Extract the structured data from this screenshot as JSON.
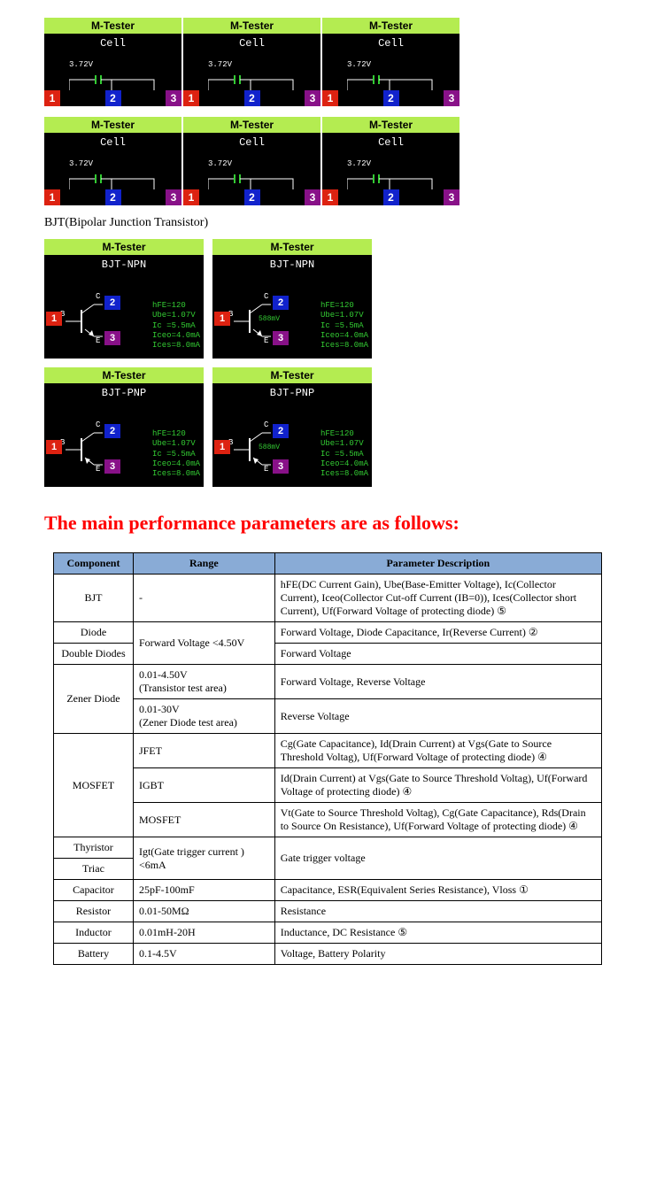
{
  "tester_label": "M-Tester",
  "cell": {
    "title": "Cell",
    "voltage": "3.72V",
    "pins": [
      "1",
      "2",
      "3"
    ]
  },
  "bjt_section_label": "BJT(Bipolar Junction Transistor)",
  "bjt": {
    "npn_title": "BJT-NPN",
    "pnp_title": "BJT-PNP",
    "params": {
      "hfe": "hFE=120",
      "ube": "Ube=1.07V",
      "ic": "Ic =5.5mA",
      "iceo": "Iceo=4.0mA",
      "ices": "Ices=8.0mA"
    },
    "vf": "588mV",
    "pin_c": "2",
    "pin_b": "1",
    "pin_e": "3",
    "label_c": "C",
    "label_b": "B",
    "label_e": "E"
  },
  "main_heading": "The main performance parameters are as follows:",
  "table": {
    "headers": {
      "component": "Component",
      "range": "Range",
      "desc": "Parameter Description"
    },
    "rows": [
      {
        "component": "BJT",
        "range": "-",
        "desc": "hFE(DC Current Gain), Ube(Base-Emitter Voltage), Ic(Collector Current), Iceo(Collector Cut-off Current (IB=0)), Ices(Collector short Current), Uf(Forward Voltage of protecting diode) ⑤"
      },
      {
        "component": "Diode",
        "range": "Forward Voltage <4.50V",
        "desc": "Forward Voltage, Diode Capacitance, Ir(Reverse Current) ②",
        "range_rowspan": 2
      },
      {
        "component": "Double Diodes",
        "desc": "Forward Voltage"
      },
      {
        "component": "Zener Diode",
        "comp_rowspan": 2,
        "range": "0.01-4.50V\n(Transistor test area)",
        "desc": "Forward Voltage, Reverse Voltage"
      },
      {
        "range": "0.01-30V\n(Zener Diode test area)",
        "desc": "Reverse Voltage"
      },
      {
        "component": "MOSFET",
        "comp_rowspan": 3,
        "range": "JFET",
        "desc": "Cg(Gate Capacitance), Id(Drain Current) at Vgs(Gate to Source Threshold Voltag), Uf(Forward Voltage of protecting diode) ④"
      },
      {
        "range": "IGBT",
        "desc": "Id(Drain Current) at Vgs(Gate to Source Threshold Voltag), Uf(Forward Voltage of protecting diode) ④"
      },
      {
        "range": "MOSFET",
        "desc": "Vt(Gate to Source Threshold Voltag), Cg(Gate Capacitance), Rds(Drain to Source On Resistance), Uf(Forward Voltage of protecting diode) ④"
      },
      {
        "component": "Thyristor",
        "range": "Igt(Gate trigger current )<6mA",
        "range_rowspan": 2,
        "desc": "Gate trigger voltage",
        "desc_rowspan": 2
      },
      {
        "component": "Triac"
      },
      {
        "component": "Capacitor",
        "range": "25pF-100mF",
        "desc": "Capacitance, ESR(Equivalent Series Resistance), Vloss ①"
      },
      {
        "component": "Resistor",
        "range": "0.01-50MΩ",
        "desc": "Resistance"
      },
      {
        "component": "Inductor",
        "range": "0.01mH-20H",
        "desc": "Inductance, DC Resistance ⑤"
      },
      {
        "component": "Battery",
        "range": "0.1-4.5V",
        "desc": "Voltage, Battery Polarity"
      }
    ]
  },
  "colors": {
    "header_green": "#b4ec51",
    "text_green": "#33cc33",
    "pin_red": "#dd2211",
    "pin_blue": "#1122cc",
    "pin_purple": "#881188",
    "table_header": "#89abd6",
    "red_heading": "#ff0000"
  }
}
